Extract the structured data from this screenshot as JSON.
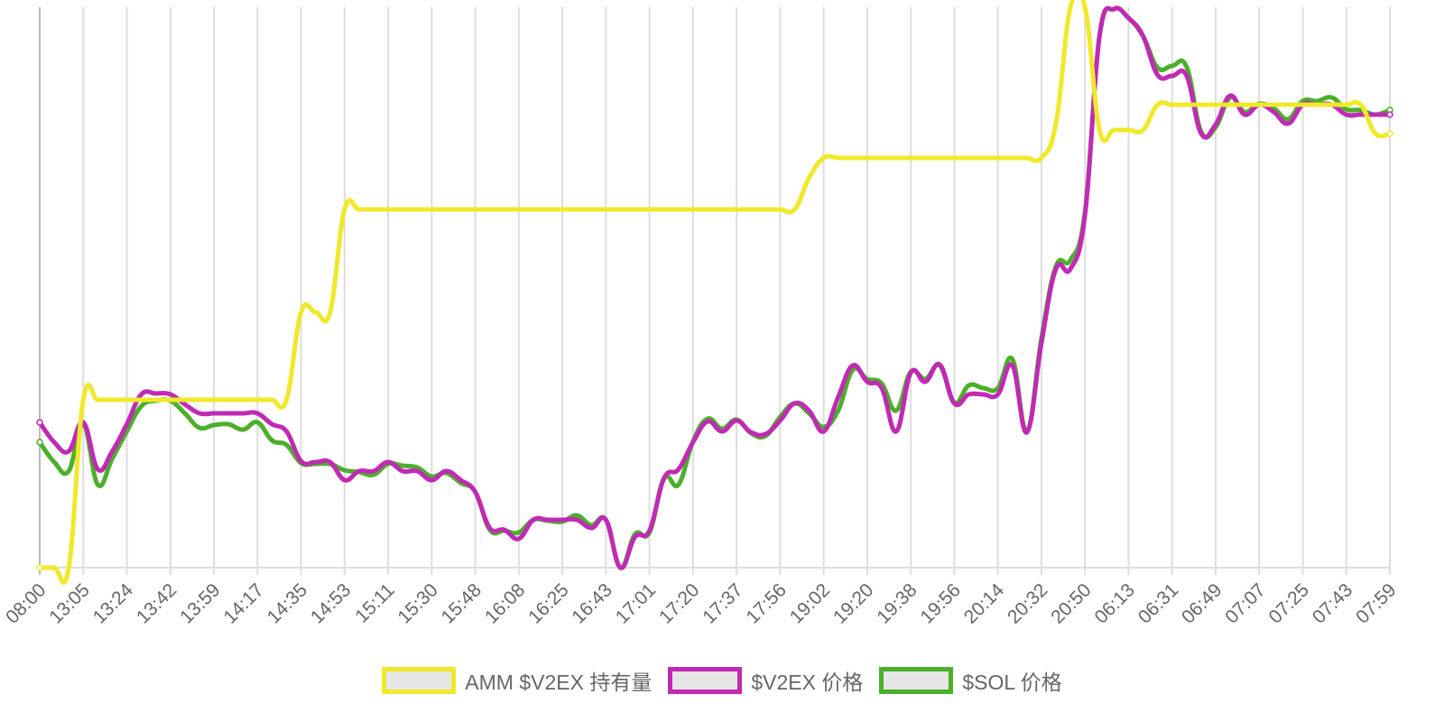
{
  "chart_data": {
    "type": "line",
    "categories": [
      "08:00",
      null,
      null,
      "13:05",
      null,
      null,
      "13:24",
      null,
      null,
      "13:42",
      null,
      null,
      "13:59",
      null,
      null,
      "14:17",
      null,
      null,
      "14:35",
      null,
      null,
      "14:53",
      null,
      null,
      "15:11",
      null,
      null,
      "15:30",
      null,
      null,
      "15:48",
      null,
      null,
      "16:08",
      null,
      null,
      "16:25",
      null,
      null,
      "16:43",
      null,
      null,
      "17:01",
      null,
      null,
      "17:20",
      null,
      null,
      "17:37",
      null,
      null,
      "17:56",
      null,
      null,
      "19:02",
      null,
      null,
      "19:20",
      null,
      null,
      "19:38",
      null,
      null,
      "19:56",
      null,
      null,
      "20:14",
      null,
      null,
      "20:32",
      null,
      null,
      "20:50",
      null,
      null,
      "06:13",
      null,
      null,
      "06:31",
      null,
      null,
      "06:49",
      null,
      null,
      "07:07",
      null,
      null,
      "07:25",
      null,
      null,
      "07:43",
      null,
      null,
      "07:59"
    ],
    "series": [
      {
        "name": "AMM $V2EX 持有量",
        "color": "#f0e92a",
        "values": [
          0,
          0,
          0,
          186,
          186,
          186,
          186,
          186,
          186,
          186,
          186,
          186,
          186,
          186,
          186,
          186,
          186,
          186,
          283,
          283,
          283,
          397,
          397,
          397,
          397,
          397,
          397,
          397,
          397,
          397,
          397,
          397,
          397,
          397,
          397,
          397,
          397,
          397,
          397,
          397,
          397,
          397,
          397,
          397,
          397,
          397,
          397,
          397,
          397,
          397,
          397,
          397,
          397,
          432,
          454,
          454,
          454,
          454,
          454,
          454,
          454,
          454,
          454,
          454,
          454,
          454,
          454,
          454,
          454,
          454,
          492,
          621,
          621,
          485,
          485,
          485,
          485,
          513,
          513,
          513,
          513,
          513,
          513,
          513,
          513,
          513,
          513,
          513,
          513,
          513,
          513,
          513,
          481,
          481
        ]
      },
      {
        "name": "$V2EX 价格",
        "color": "#c02ab4",
        "values": [
          161,
          139,
          129,
          161,
          109,
          129,
          159,
          192,
          193,
          192,
          181,
          171,
          171,
          171,
          171,
          171,
          159,
          151,
          118,
          117,
          117,
          97,
          107,
          107,
          117,
          107,
          107,
          97,
          107,
          97,
          84,
          44,
          42,
          32,
          53,
          53,
          53,
          53,
          44,
          53,
          0,
          34,
          41,
          99,
          109,
          139,
          162,
          151,
          163,
          150,
          148,
          163,
          182,
          174,
          151,
          189,
          224,
          206,
          199,
          151,
          216,
          206,
          225,
          182,
          192,
          192,
          192,
          224,
          150,
          249,
          331,
          331,
          391,
          589,
          619,
          609,
          589,
          546,
          545,
          545,
          481,
          491,
          523,
          502,
          513,
          505,
          492,
          513,
          513,
          513,
          502,
          502,
          502,
          502
        ]
      },
      {
        "name": "$SOL 价格",
        "color": "#4caf2a",
        "values": [
          139,
          117,
          107,
          159,
          92,
          121,
          151,
          179,
          185,
          185,
          171,
          155,
          158,
          159,
          153,
          161,
          141,
          136,
          116,
          115,
          115,
          108,
          106,
          103,
          115,
          113,
          111,
          101,
          105,
          94,
          84,
          42,
          41,
          39,
          53,
          52,
          51,
          58,
          47,
          53,
          0,
          37,
          39,
          99,
          92,
          140,
          165,
          154,
          164,
          149,
          146,
          167,
          182,
          171,
          156,
          174,
          219,
          209,
          204,
          174,
          217,
          209,
          224,
          183,
          202,
          199,
          199,
          231,
          151,
          254,
          334,
          341,
          394,
          589,
          619,
          609,
          589,
          554,
          556,
          555,
          483,
          488,
          521,
          505,
          514,
          509,
          497,
          517,
          517,
          521,
          508,
          507,
          502,
          507
        ]
      }
    ],
    "ylim": [
      0,
      621
    ],
    "grid": true
  }
}
